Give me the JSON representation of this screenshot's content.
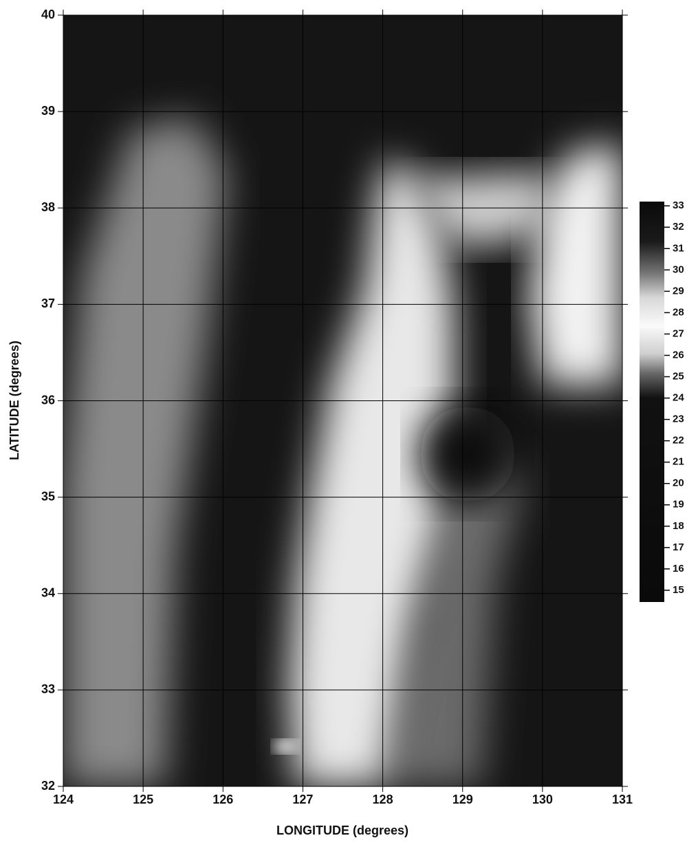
{
  "chart_data": {
    "type": "contour",
    "x_label": "LONGITUDE (degrees)",
    "y_label": "LATITUDE (degrees)",
    "xlim": [
      124,
      131
    ],
    "ylim": [
      32,
      40
    ],
    "xticks": [
      124,
      125,
      126,
      127,
      128,
      129,
      130,
      131
    ],
    "yticks": [
      32,
      33,
      34,
      35,
      36,
      37,
      38,
      39,
      40
    ],
    "grid": true,
    "colorbar": {
      "lim": [
        14.45,
        33.2
      ],
      "ticks": [
        15,
        16,
        17,
        18,
        19,
        20,
        21,
        22,
        23,
        24,
        25,
        26,
        27,
        28,
        29,
        30,
        31,
        32,
        33
      ]
    }
  }
}
